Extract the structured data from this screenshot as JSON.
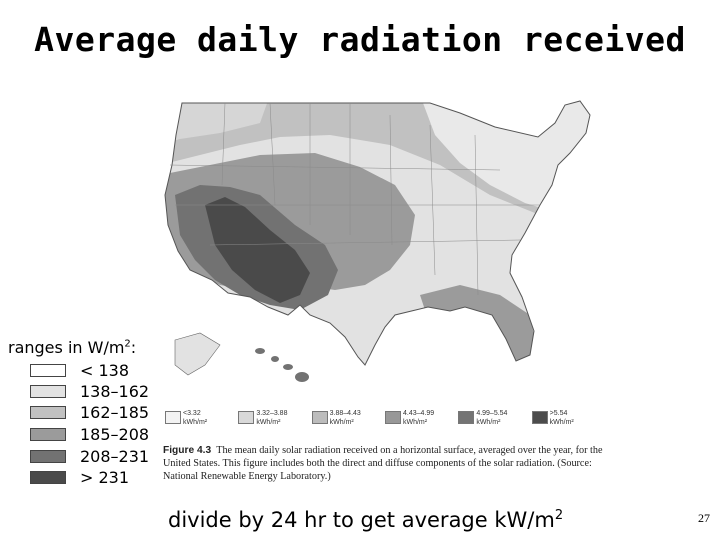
{
  "title": "Average daily radiation received",
  "ranges": {
    "heading_prefix": "ranges in W/m",
    "heading_exp": "2",
    "heading_suffix": ":",
    "items": [
      {
        "label": "< 138",
        "color": "#ffffff"
      },
      {
        "label": "138–162",
        "color": "#e2e2e2"
      },
      {
        "label": "162–185",
        "color": "#c1c1c1"
      },
      {
        "label": "185–208",
        "color": "#9b9b9b"
      },
      {
        "label": "208–231",
        "color": "#727272"
      },
      {
        "label": "> 231",
        "color": "#4a4a4a"
      }
    ]
  },
  "figure_legend": [
    {
      "range": "<3.32",
      "unit": "kWh/m²",
      "color": "#f3f3f3"
    },
    {
      "range": "3.32–3.88",
      "unit": "kWh/m²",
      "color": "#d9d9d9"
    },
    {
      "range": "3.88–4.43",
      "unit": "kWh/m²",
      "color": "#bcbcbc"
    },
    {
      "range": "4.43–4.99",
      "unit": "kWh/m²",
      "color": "#989898"
    },
    {
      "range": "4.99–5.54",
      "unit": "kWh/m²",
      "color": "#747474"
    },
    {
      "range": ">5.54",
      "unit": "kWh/m²",
      "color": "#4c4c4c"
    }
  ],
  "caption": {
    "figure_label": "Figure 4.3",
    "text": "The mean daily solar radiation received on a horizontal surface, averaged over the year, for the United States. This figure includes both the direct and diffuse components of the solar radiation. (Source: National Renewable Energy Laboratory.)"
  },
  "footer": {
    "prefix": "divide by 24 hr to get average kW/m",
    "exp": "2"
  },
  "page_number": "27"
}
